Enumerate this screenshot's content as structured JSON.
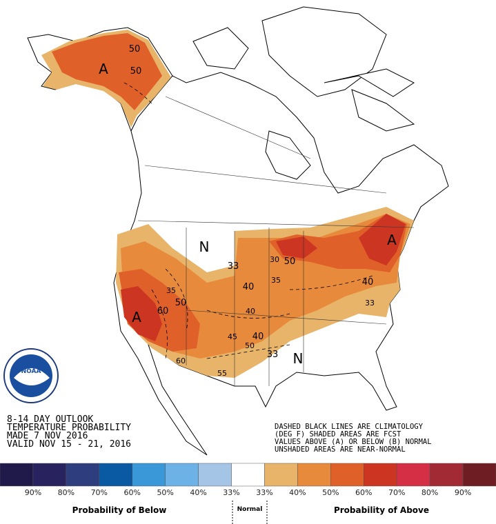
{
  "header": {
    "lines": [
      "8-14 DAY OUTLOOK",
      "TEMPERATURE PROBABILITY",
      "MADE  7 NOV 2016",
      "VALID  NOV 15 - 21, 2016"
    ]
  },
  "notes": [
    "DASHED BLACK LINES ARE CLIMATOLOGY",
    "(DEG F) SHADED AREAS ARE FCST",
    "VALUES ABOVE (A) OR BELOW (B) NORMAL",
    "UNSHADED AREAS ARE NEAR-NORMAL"
  ],
  "logo": "NOAA",
  "map_labels": [
    "A",
    "50",
    "50",
    "N",
    "33",
    "30",
    "50",
    "35",
    "40",
    "A",
    "40",
    "33",
    "35",
    "50",
    "60",
    "A",
    "40",
    "40",
    "45",
    "50",
    "33",
    "N",
    "55",
    "60"
  ],
  "legend": {
    "colors": [
      "#1f1a4a",
      "#28225f",
      "#2e3d7e",
      "#0a5aa3",
      "#3a98d8",
      "#6cb2e6",
      "#a5c5e6",
      "#ffffff",
      "#e8b46a",
      "#e88a3c",
      "#e0602a",
      "#cc3522",
      "#d42f45",
      "#a12a35",
      "#6e1e22"
    ],
    "labels": [
      "90%",
      "80%",
      "70%",
      "60%",
      "50%",
      "40%",
      "33%",
      "33%",
      "40%",
      "50%",
      "60%",
      "70%",
      "80%",
      "90%"
    ],
    "below": "Probability of Below",
    "normal": "Normal",
    "above": "Probability of Above"
  }
}
